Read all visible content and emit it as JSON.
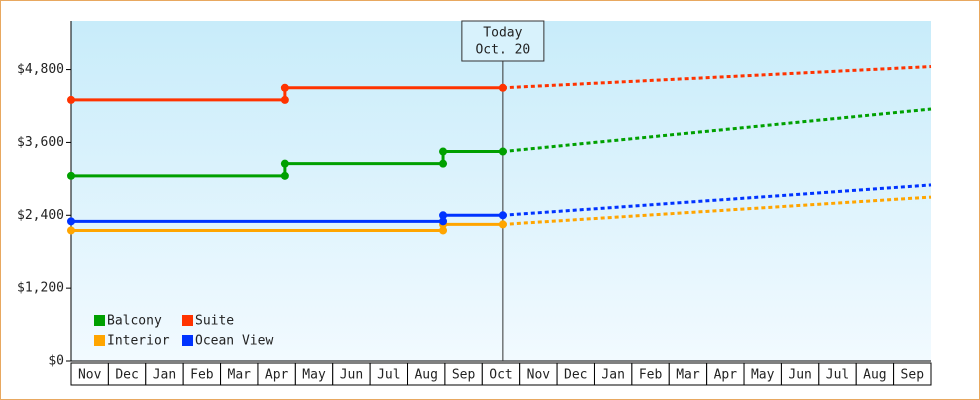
{
  "chart_data": {
    "type": "line",
    "xlim": [
      0,
      23
    ],
    "ylim": [
      0,
      5600
    ],
    "yticks": [
      {
        "value": 0,
        "label": "$0"
      },
      {
        "value": 1200,
        "label": "$1,200"
      },
      {
        "value": 2400,
        "label": "$2,400"
      },
      {
        "value": 3600,
        "label": "$3,600"
      },
      {
        "value": 4800,
        "label": "$4,800"
      }
    ],
    "categories": [
      "Nov",
      "Dec",
      "Jan",
      "Feb",
      "Mar",
      "Apr",
      "May",
      "Jun",
      "Jul",
      "Aug",
      "Sep",
      "Oct",
      "Nov",
      "Dec",
      "Jan",
      "Feb",
      "Mar",
      "Apr",
      "May",
      "Jun",
      "Jul",
      "Aug",
      "Sep"
    ],
    "today": {
      "x": 11.55,
      "label": "Today",
      "date": "Oct. 20"
    },
    "series": [
      {
        "name": "Balcony",
        "color": "#00a000",
        "x": [
          0,
          5.72,
          5.72,
          9.95,
          9.95,
          11.55,
          23
        ],
        "values": [
          3050,
          3050,
          3250,
          3250,
          3450,
          3450,
          4150
        ]
      },
      {
        "name": "Suite",
        "color": "#ff3300",
        "x": [
          0,
          5.72,
          5.72,
          11.55,
          23
        ],
        "values": [
          4300,
          4300,
          4500,
          4500,
          4850
        ]
      },
      {
        "name": "Interior",
        "color": "#ffa500",
        "x": [
          0,
          9.95,
          9.95,
          11.55,
          23
        ],
        "values": [
          2150,
          2150,
          2250,
          2250,
          2700
        ]
      },
      {
        "name": "Ocean View",
        "color": "#0033ff",
        "x": [
          0,
          9.95,
          9.95,
          11.55,
          23
        ],
        "values": [
          2300,
          2300,
          2400,
          2400,
          2900
        ]
      }
    ]
  }
}
